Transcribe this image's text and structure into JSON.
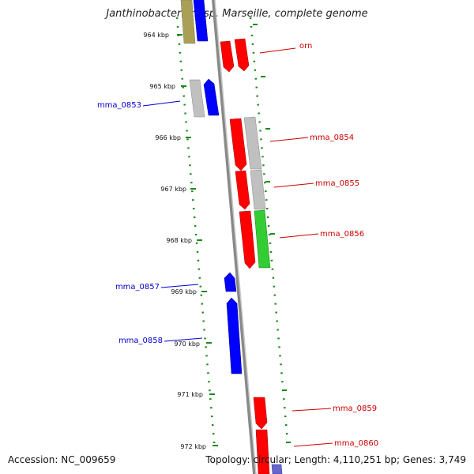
{
  "title": "Janthinobacterium sp. Marseille, complete genome",
  "accession": "Accession: NC_009659",
  "topology": "Topology: circular; Length: 4,110,251 bp; Genes: 3,749",
  "colors": {
    "forward": "#ff0000",
    "reverse": "#0000ff",
    "hypothetical": "#c0c0c0",
    "green": "#33cc33",
    "olive": "#aaa055",
    "backbone": "#888888",
    "tick": "#1a8a1a"
  },
  "ticks": [
    "964 kbp",
    "965 kbp",
    "966 kbp",
    "967 kbp",
    "968 kbp",
    "969 kbp",
    "970 kbp",
    "971 kbp",
    "972 kbp"
  ],
  "forward_labels": [
    "orn",
    "mma_0854",
    "mma_0855",
    "mma_0856",
    "mma_0859",
    "mma_0860"
  ],
  "reverse_labels": [
    "mma_0853",
    "mma_0857",
    "mma_0858"
  ]
}
